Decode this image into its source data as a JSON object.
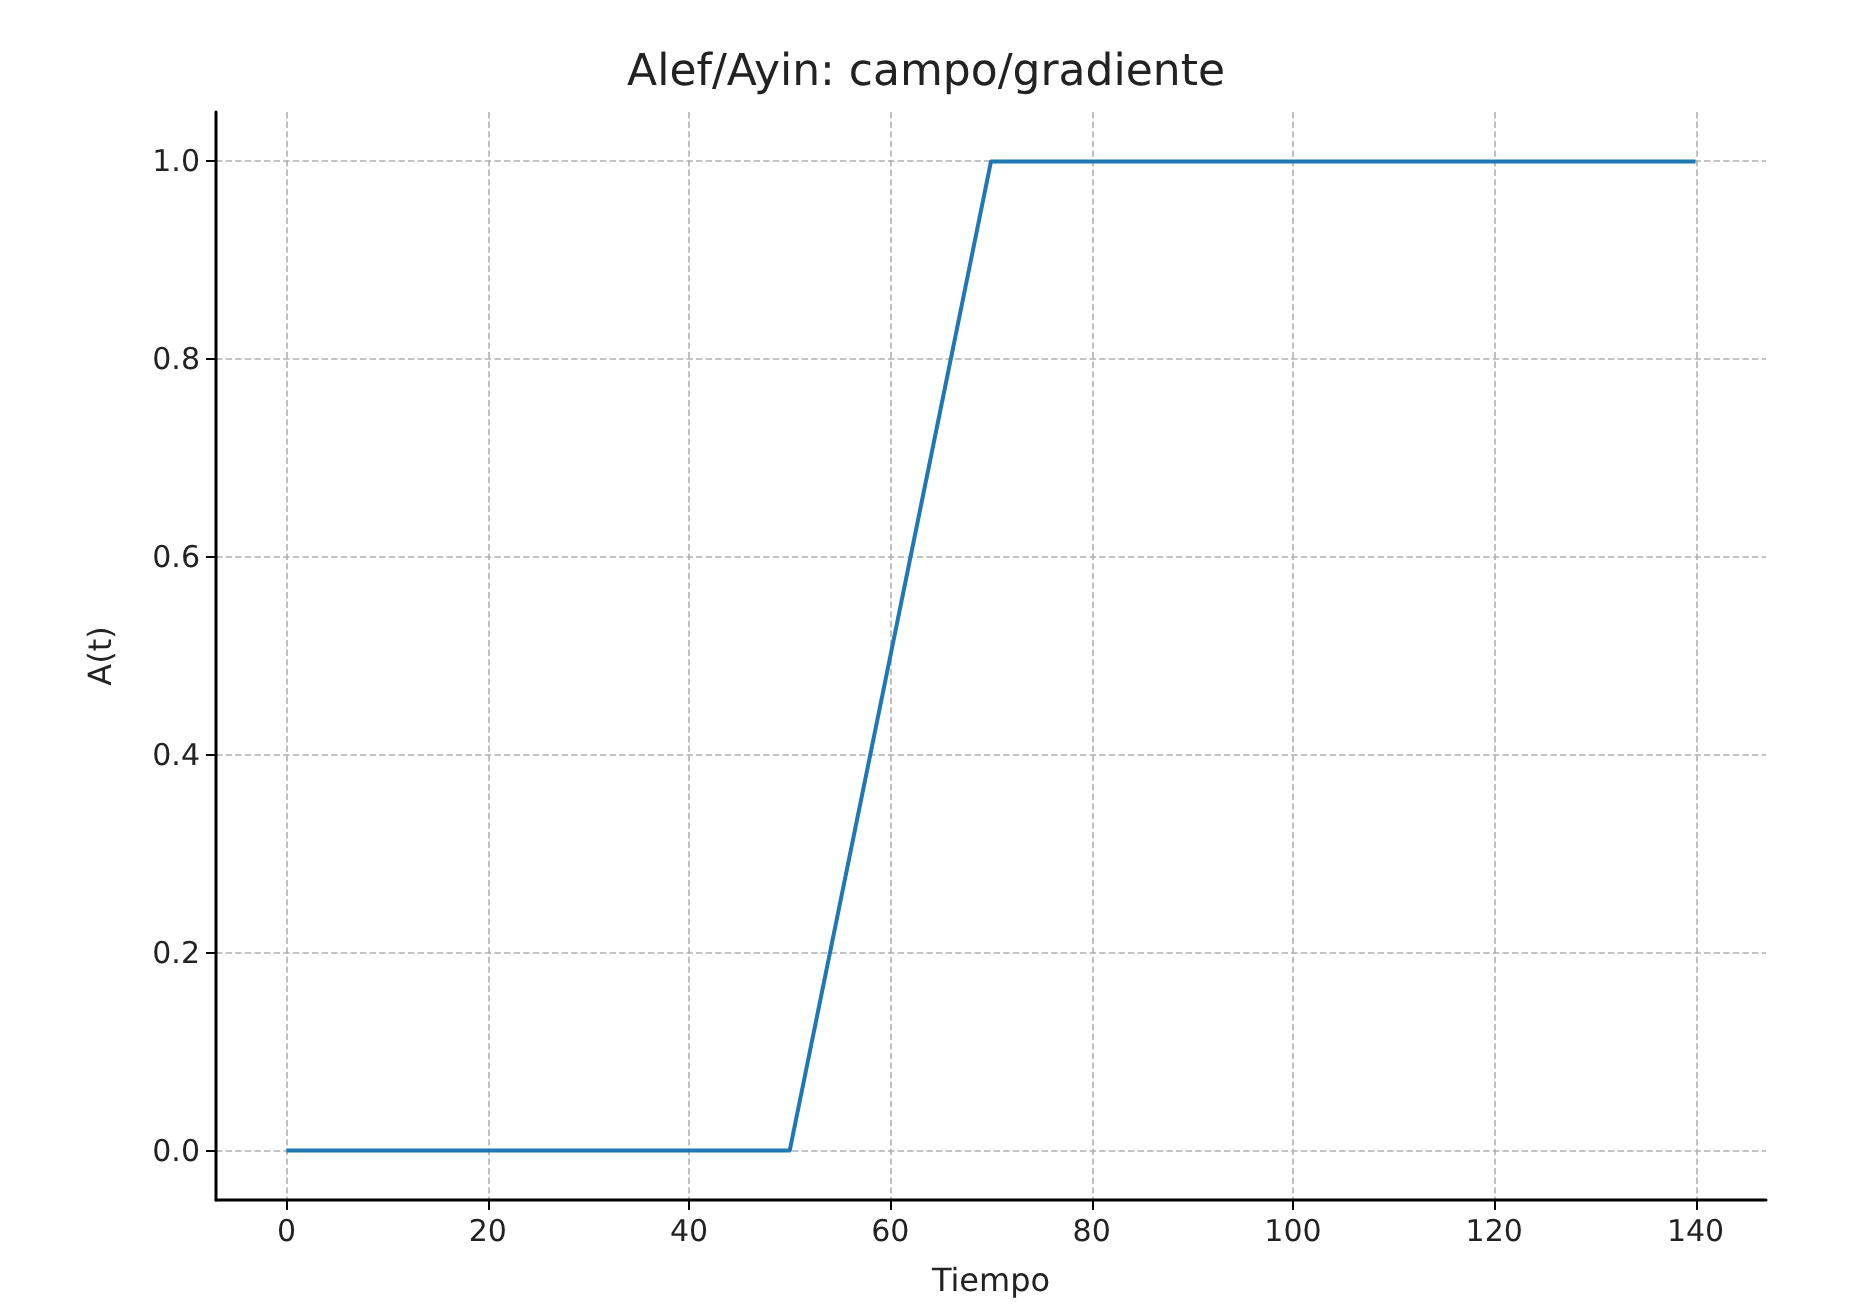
{
  "chart_data": {
    "type": "line",
    "title": "Alef/Ayin: campo/gradiente",
    "xlabel": "Tiempo",
    "ylabel": "A(t)",
    "x": [
      0,
      50,
      70,
      140
    ],
    "series": [
      {
        "color": "#1f77b4",
        "values": [
          0,
          0,
          1,
          1
        ]
      }
    ],
    "xlim": [
      -7,
      147
    ],
    "xticks": [
      0,
      20,
      40,
      60,
      80,
      100,
      120,
      140
    ],
    "ylim": [
      -0.05,
      1.05
    ],
    "yticks": [
      {
        "value": 0,
        "label": "0.0"
      },
      {
        "value": 0.2,
        "label": "0.2"
      },
      {
        "value": 0.4,
        "label": "0.4"
      },
      {
        "value": 0.6,
        "label": "0.6"
      },
      {
        "value": 0.8,
        "label": "0.8"
      },
      {
        "value": 1,
        "label": "1.0"
      }
    ],
    "grid": true,
    "marker": "none",
    "line_style": "solid"
  }
}
